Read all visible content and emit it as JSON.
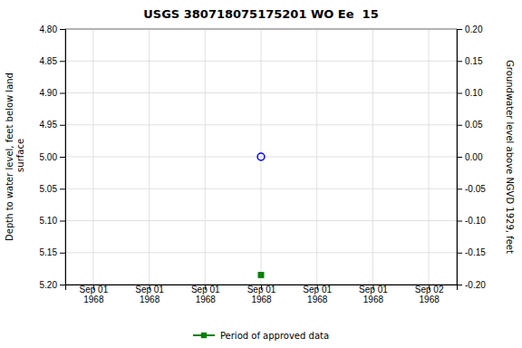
{
  "chart_data": {
    "type": "scatter",
    "title": "USGS 380718075175201 WO Ee  15",
    "ylabel": "Depth to water level, feet below land\n surface",
    "y2label": "Groundwater level above NGVD 1929, feet",
    "categories": [
      "Sep 01\n1968",
      "Sep 01\n1968",
      "Sep 01\n1968",
      "Sep 01\n1968",
      "Sep 01\n1968",
      "Sep 01\n1968",
      "Sep 02\n1968"
    ],
    "series": [
      {
        "color": "#0000ff",
        "marker": "circle-open",
        "values": [
          null,
          null,
          null,
          5.0,
          null,
          null,
          null
        ]
      },
      {
        "name": "Period of approved data",
        "color": "#008000",
        "marker": "square",
        "values": [
          null,
          null,
          null,
          5.185,
          null,
          null,
          null
        ]
      }
    ],
    "ylim": [
      5.2,
      4.8
    ],
    "yticks": [
      {
        "value": 4.8,
        "label": "4.80"
      },
      4.85,
      {
        "value": 4.9,
        "label": "4.90"
      },
      4.95,
      {
        "value": 5.0,
        "label": "5.00"
      },
      5.05,
      {
        "value": 5.1,
        "label": "5.10"
      },
      5.15,
      {
        "value": 5.2,
        "label": "5.20"
      }
    ],
    "y2lim": [
      -0.2,
      0.2
    ],
    "y2ticks": [
      {
        "value": 0.2,
        "label": "0.20"
      },
      0.15,
      {
        "value": 0.1,
        "label": "0.10"
      },
      0.05,
      {
        "value": 0.0,
        "label": "0.00"
      },
      -0.05,
      {
        "value": -0.1,
        "label": "-0.10"
      },
      -0.15,
      {
        "value": -0.2,
        "label": "-0.20"
      }
    ],
    "grid": true,
    "legend": "bottom"
  }
}
